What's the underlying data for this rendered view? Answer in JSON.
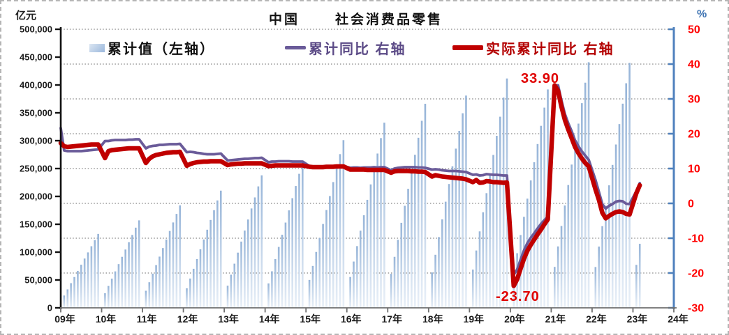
{
  "title": {
    "part1": "中国",
    "part2": "社会消费品零售"
  },
  "chart_data": {
    "type": "combo-bar-line",
    "title": "中国 社会消费品零售",
    "grid": "dotted horizontal lines every 10 units of right axis",
    "legend_position": "top inside plot",
    "x_axis": {
      "start_year": 2009,
      "end_year": 2024,
      "tick_labels": [
        "09年",
        "10年",
        "11年",
        "12年",
        "13年",
        "14年",
        "15年",
        "16年",
        "17年",
        "18年",
        "19年",
        "20年",
        "21年",
        "22年",
        "23年",
        "24年"
      ]
    },
    "left_axis": {
      "unit": "亿元",
      "min": 0,
      "max": 500000,
      "step": 50000,
      "tick_labels": [
        "500,000",
        "450,000",
        "400,000",
        "350,000",
        "300,000",
        "250,000",
        "200,000",
        "150,000",
        "100,000",
        "50,000",
        "0"
      ]
    },
    "right_axis": {
      "unit": "%",
      "min": -30,
      "max": 50,
      "step": 10,
      "tick_labels": [
        "50",
        "40",
        "30",
        "20",
        "10",
        "0",
        "-10",
        "-20",
        "-30"
      ],
      "spine_color": "#4f81bd",
      "label_color": "#ff0000"
    },
    "month_convention": "first value of each year = Jan-Feb combined (month 2), then monthly through Dec",
    "series": [
      {
        "name": "累计值（左轴）",
        "type": "bar",
        "axis": "left",
        "color_top": "#96b4d8",
        "color_bottom": "#e9f0f8",
        "years": [
          {
            "year": 2009,
            "monthly_cumulative": [
              22113,
              33170,
              44226,
              55283,
              66339,
              77396,
              88452,
              99509,
              110565,
              121622,
              132678
            ]
          },
          {
            "year": 2010,
            "monthly_cumulative": [
              26166,
              39250,
              52333,
              65416,
              78499,
              91582,
              104665,
              117749,
              130832,
              143915,
              156998
            ]
          },
          {
            "year": 2011,
            "monthly_cumulative": [
              30653,
              45980,
              61306,
              76633,
              91960,
              107286,
              122613,
              137939,
              153266,
              168593,
              183919
            ]
          },
          {
            "year": 2012,
            "monthly_cumulative": [
              35051,
              52577,
              70102,
              87628,
              105154,
              122679,
              140205,
              157730,
              175256,
              192781,
              210307
            ]
          },
          {
            "year": 2013,
            "monthly_cumulative": [
              39635,
              59453,
              79270,
              99088,
              118905,
              138723,
              158540,
              178358,
              198175,
              217993,
              237810
            ]
          },
          {
            "year": 2014,
            "monthly_cumulative": [
              43732,
              65599,
              87465,
              109331,
              131197,
              153063,
              174929,
              196796,
              218662,
              240528,
              262394
            ]
          },
          {
            "year": 2015,
            "monthly_cumulative": [
              50155,
              75233,
              100310,
              125388,
              150466,
              175543,
              200621,
              225698,
              250776,
              275853,
              300931
            ]
          },
          {
            "year": 2016,
            "monthly_cumulative": [
              55386,
              83079,
              110772,
              138465,
              166158,
              193851,
              221544,
              249237,
              276930,
              304623,
              332316
            ]
          },
          {
            "year": 2017,
            "monthly_cumulative": [
              61044,
              91566,
              122087,
              152609,
              183131,
              213653,
              244175,
              274697,
              305218,
              335740,
              366262
            ]
          },
          {
            "year": 2018,
            "monthly_cumulative": [
              63498,
              95247,
              126996,
              158745,
              190494,
              222242,
              253991,
              285740,
              317489,
              349238,
              380987
            ]
          },
          {
            "year": 2019,
            "monthly_cumulative": [
              68608,
              102912,
              137216,
              171520,
              205825,
              240129,
              274433,
              308737,
              343041,
              377345,
              411649
            ]
          },
          {
            "year": 2020,
            "monthly_cumulative": [
              65330,
              97995,
              130660,
              163325,
              195991,
              228656,
              261321,
              293986,
              326651,
              359316,
              391981
            ]
          },
          {
            "year": 2021,
            "monthly_cumulative": [
              73471,
              110206,
              146941,
              183676,
              220412,
              257147,
              293882,
              330617,
              367353,
              404088,
              440823
            ]
          },
          {
            "year": 2022,
            "monthly_cumulative": [
              73289,
              109933,
              146578,
              183222,
              219867,
              256511,
              293155,
              329800,
              366444,
              403089,
              439733
            ]
          },
          {
            "year": 2023,
            "monthly_cumulative": [
              77067,
              114922
            ]
          }
        ]
      },
      {
        "name": "累计同比 右轴",
        "type": "line",
        "axis": "right",
        "color": "#6a5b99",
        "width": 3.8,
        "lead_point": {
          "x": 2009.0,
          "value": 21.6
        },
        "years": [
          {
            "year": 2009,
            "values": [
              15.2,
              15.0,
              15.0,
              15.0,
              15.0,
              15.0,
              15.1,
              15.2,
              15.3,
              15.4,
              15.5
            ]
          },
          {
            "year": 2010,
            "values": [
              17.9,
              17.9,
              18.1,
              18.2,
              18.2,
              18.2,
              18.2,
              18.3,
              18.3,
              18.4,
              18.4
            ]
          },
          {
            "year": 2011,
            "values": [
              15.8,
              16.3,
              16.5,
              16.6,
              16.8,
              16.8,
              16.9,
              17.0,
              17.0,
              17.0,
              17.1
            ]
          },
          {
            "year": 2012,
            "values": [
              14.7,
              14.8,
              14.7,
              14.5,
              14.4,
              14.2,
              14.1,
              14.1,
              14.1,
              14.2,
              14.3
            ]
          },
          {
            "year": 2013,
            "values": [
              12.3,
              12.4,
              12.5,
              12.6,
              12.7,
              12.8,
              12.8,
              12.9,
              13.0,
              13.0,
              13.1
            ]
          },
          {
            "year": 2014,
            "values": [
              11.8,
              12.0,
              12.0,
              12.1,
              12.1,
              12.1,
              12.1,
              12.0,
              12.0,
              12.0,
              12.0
            ]
          },
          {
            "year": 2015,
            "values": [
              10.7,
              10.6,
              10.4,
              10.4,
              10.4,
              10.4,
              10.5,
              10.5,
              10.6,
              10.6,
              10.7
            ]
          },
          {
            "year": 2016,
            "values": [
              10.2,
              10.3,
              10.3,
              10.2,
              10.3,
              10.3,
              10.3,
              10.4,
              10.3,
              10.4,
              10.4
            ]
          },
          {
            "year": 2017,
            "values": [
              9.5,
              10.0,
              10.2,
              10.3,
              10.4,
              10.4,
              10.4,
              10.4,
              10.3,
              10.3,
              10.2
            ]
          },
          {
            "year": 2018,
            "values": [
              9.7,
              9.8,
              9.7,
              9.5,
              9.4,
              9.3,
              9.3,
              9.3,
              9.2,
              9.1,
              9.0
            ]
          },
          {
            "year": 2019,
            "values": [
              8.2,
              8.3,
              8.0,
              8.1,
              8.4,
              8.3,
              8.2,
              8.2,
              8.1,
              8.0,
              8.0
            ]
          },
          {
            "year": 2020,
            "values": [
              -20.5,
              -19.0,
              -16.2,
              -13.5,
              -11.4,
              -9.9,
              -8.6,
              -7.2,
              -5.9,
              -4.8,
              -3.9
            ]
          },
          {
            "year": 2021,
            "values": [
              33.8,
              33.9,
              29.6,
              25.7,
              23.0,
              20.7,
              18.1,
              16.4,
              14.9,
              13.7,
              12.5
            ]
          },
          {
            "year": 2022,
            "values": [
              6.7,
              3.3,
              -0.2,
              -1.5,
              -0.7,
              -0.2,
              0.5,
              0.7,
              0.6,
              -0.1,
              -0.2
            ]
          },
          {
            "year": 2023,
            "values": [
              3.5,
              5.8
            ]
          }
        ]
      },
      {
        "name": "实际累计同比 右轴",
        "type": "line",
        "axis": "right",
        "color": "#c00000",
        "width": 6.5,
        "lead_point": {
          "x": 2009.0,
          "value": 17.3
        },
        "years": [
          {
            "year": 2009,
            "values": [
              16.4,
              16.2,
              16.3,
              16.4,
              16.5,
              16.6,
              16.7,
              16.8,
              16.9,
              16.9,
              16.9
            ]
          },
          {
            "year": 2010,
            "values": [
              13.0,
              15.0,
              15.3,
              15.4,
              15.5,
              15.6,
              15.7,
              15.8,
              15.8,
              15.8,
              15.8
            ]
          },
          {
            "year": 2011,
            "values": [
              11.6,
              12.8,
              13.5,
              13.9,
              14.1,
              14.3,
              14.5,
              14.6,
              14.7,
              14.7,
              14.8
            ]
          },
          {
            "year": 2012,
            "values": [
              10.8,
              11.3,
              11.6,
              11.8,
              11.9,
              12.0,
              12.0,
              12.1,
              12.1,
              12.1,
              12.1
            ]
          },
          {
            "year": 2013,
            "values": [
              11.0,
              11.2,
              11.3,
              11.4,
              11.4,
              11.5,
              11.5,
              11.5,
              11.5,
              11.5,
              11.5
            ]
          },
          {
            "year": 2014,
            "values": [
              10.7,
              10.8,
              10.9,
              10.9,
              10.9,
              10.9,
              10.9,
              10.9,
              10.9,
              10.9,
              10.9
            ]
          },
          {
            "year": 2015,
            "values": [
              10.5,
              10.4,
              10.4,
              10.4,
              10.4,
              10.5,
              10.5,
              10.5,
              10.6,
              10.6,
              10.6
            ]
          },
          {
            "year": 2016,
            "values": [
              9.7,
              9.7,
              9.7,
              9.7,
              9.7,
              9.6,
              9.6,
              9.6,
              9.6,
              9.6,
              9.6
            ]
          },
          {
            "year": 2017,
            "values": [
              8.8,
              9.2,
              9.3,
              9.3,
              9.3,
              9.3,
              9.2,
              9.2,
              9.1,
              9.1,
              9.0
            ]
          },
          {
            "year": 2018,
            "values": [
              7.7,
              8.1,
              7.9,
              7.7,
              7.6,
              7.5,
              7.4,
              7.3,
              7.2,
              7.1,
              6.9
            ]
          },
          {
            "year": 2019,
            "values": [
              6.1,
              6.7,
              5.9,
              6.0,
              6.4,
              6.3,
              6.1,
              6.1,
              6.0,
              5.9,
              6.0
            ]
          },
          {
            "year": 2020,
            "values": [
              -23.7,
              -21.8,
              -18.8,
              -15.9,
              -13.6,
              -11.9,
              -10.4,
              -8.9,
              -7.5,
              -6.0,
              -4.6
            ]
          },
          {
            "year": 2021,
            "values": [
              33.9,
              32.3,
              27.8,
              24.0,
              21.2,
              18.7,
              16.2,
              14.4,
              12.9,
              11.6,
              10.6
            ]
          },
          {
            "year": 2022,
            "values": [
              4.0,
              1.0,
              -2.7,
              -4.3,
              -3.6,
              -3.0,
              -2.5,
              -2.3,
              -2.5,
              -3.0,
              -3.2
            ]
          },
          {
            "year": 2023,
            "values": [
              2.9,
              5.2
            ]
          }
        ]
      }
    ],
    "annotations": [
      {
        "text": "33.90",
        "series": "实际累计同比 右轴",
        "x": 2021.083,
        "value": 33.9
      },
      {
        "text": "-23.70",
        "series": "实际累计同比 右轴",
        "x": 2020.083,
        "value": -23.7
      }
    ]
  }
}
